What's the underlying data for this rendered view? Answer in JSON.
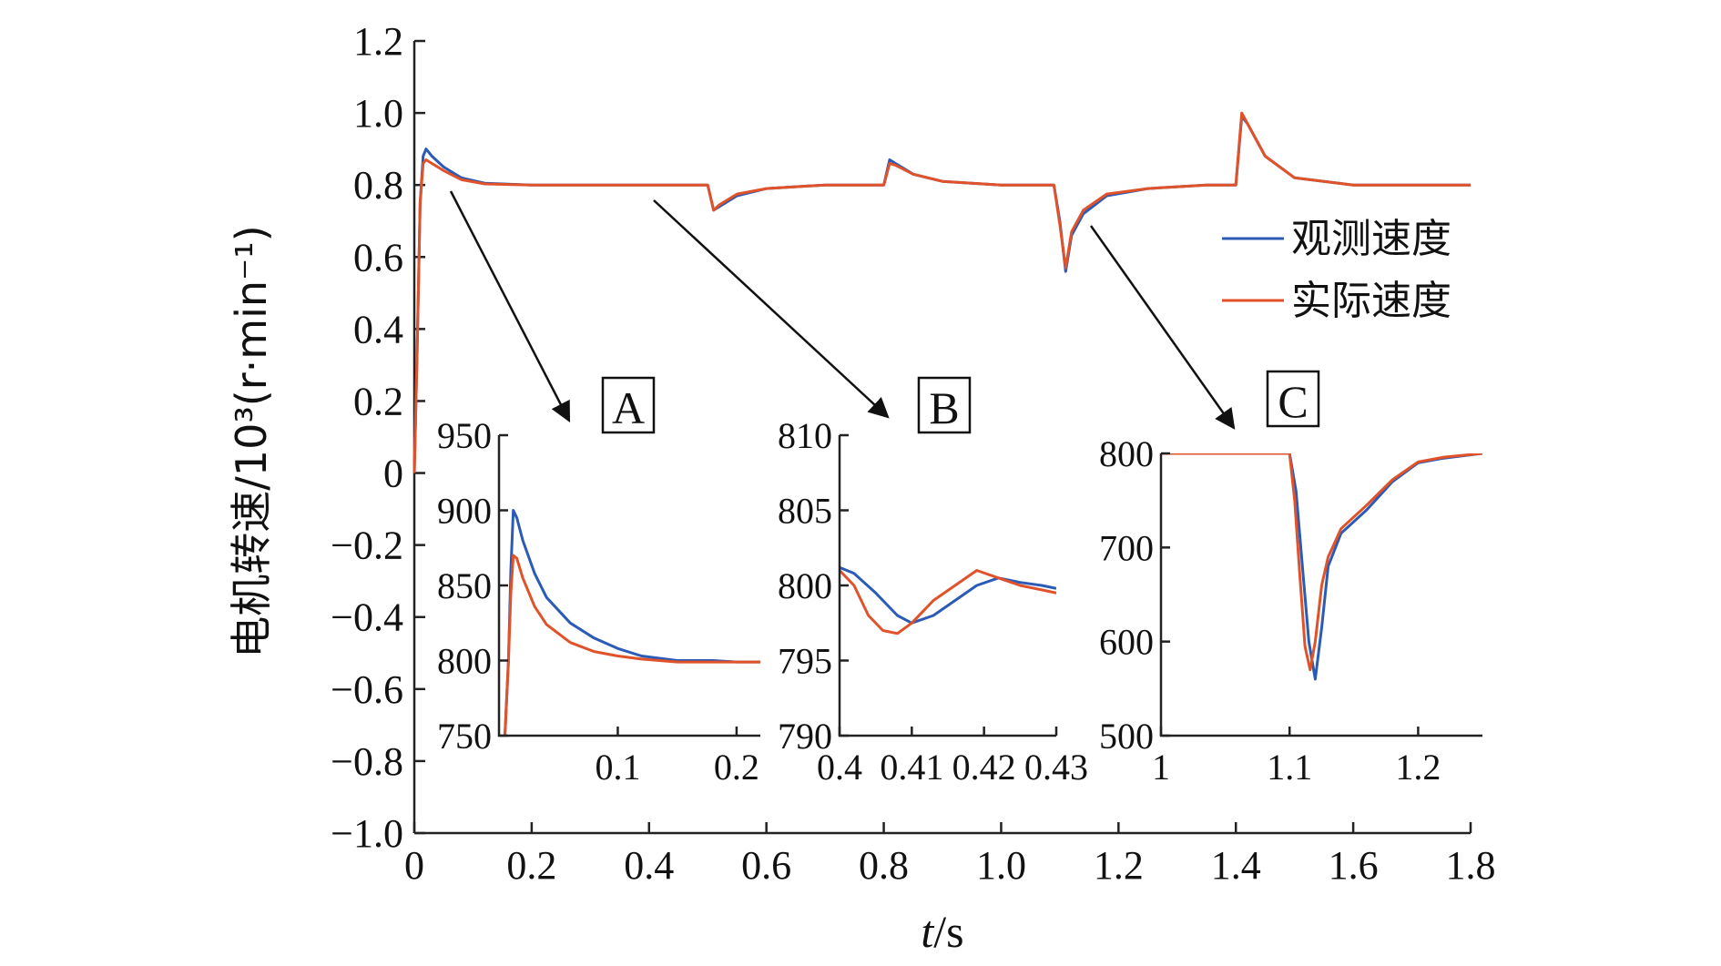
{
  "chart_data": [
    {
      "id": "main",
      "type": "line",
      "xlabel_italic": "t",
      "xlabel_rest": "/s",
      "ylabel": "电机转速/10³(r·min⁻¹)",
      "xlim": [
        0,
        1.8
      ],
      "ylim": [
        -1.0,
        1.2
      ],
      "xticks": [
        "0",
        "0.2",
        "0.4",
        "0.6",
        "0.8",
        "1.0",
        "1.2",
        "1.4",
        "1.6",
        "1.8"
      ],
      "xtick_values": [
        0,
        0.2,
        0.4,
        0.6,
        0.8,
        1.0,
        1.2,
        1.4,
        1.6,
        1.8
      ],
      "yticks": [
        "1.2",
        "1.0",
        "0.8",
        "0.6",
        "0.4",
        "0.2",
        "0",
        "−0.2",
        "−0.4",
        "−0.6",
        "−0.8",
        "−1.0"
      ],
      "ytick_values": [
        1.2,
        1.0,
        0.8,
        0.6,
        0.4,
        0.2,
        0,
        -0.2,
        -0.4,
        -0.6,
        -0.8,
        -1.0
      ],
      "legend_position": "right",
      "series": [
        {
          "name": "观测速度",
          "color": "#2b5bb5",
          "x": [
            0,
            0.005,
            0.01,
            0.015,
            0.02,
            0.03,
            0.05,
            0.08,
            0.12,
            0.2,
            0.5,
            0.51,
            0.52,
            0.55,
            0.6,
            0.7,
            0.8,
            0.81,
            0.82,
            0.85,
            0.9,
            1.0,
            1.09,
            1.1,
            1.11,
            1.12,
            1.14,
            1.18,
            1.25,
            1.35,
            1.4,
            1.41,
            1.42,
            1.45,
            1.5,
            1.6,
            1.8
          ],
          "y": [
            0,
            0.35,
            0.75,
            0.88,
            0.9,
            0.88,
            0.85,
            0.82,
            0.805,
            0.8,
            0.8,
            0.73,
            0.74,
            0.77,
            0.79,
            0.8,
            0.8,
            0.87,
            0.86,
            0.83,
            0.81,
            0.8,
            0.8,
            0.7,
            0.56,
            0.66,
            0.72,
            0.77,
            0.79,
            0.8,
            0.8,
            0.99,
            0.97,
            0.88,
            0.82,
            0.8,
            0.8
          ]
        },
        {
          "name": "实际速度",
          "color": "#e0522a",
          "x": [
            0,
            0.005,
            0.01,
            0.015,
            0.02,
            0.03,
            0.05,
            0.08,
            0.12,
            0.2,
            0.5,
            0.51,
            0.52,
            0.55,
            0.6,
            0.7,
            0.8,
            0.81,
            0.82,
            0.85,
            0.9,
            1.0,
            1.09,
            1.1,
            1.11,
            1.12,
            1.14,
            1.18,
            1.25,
            1.35,
            1.4,
            1.41,
            1.42,
            1.45,
            1.5,
            1.6,
            1.8
          ],
          "y": [
            0,
            0.35,
            0.75,
            0.86,
            0.87,
            0.86,
            0.84,
            0.815,
            0.803,
            0.8,
            0.8,
            0.73,
            0.745,
            0.775,
            0.79,
            0.8,
            0.8,
            0.86,
            0.855,
            0.83,
            0.81,
            0.8,
            0.8,
            0.69,
            0.57,
            0.67,
            0.73,
            0.775,
            0.79,
            0.8,
            0.8,
            1.0,
            0.97,
            0.88,
            0.82,
            0.8,
            0.8
          ]
        }
      ]
    },
    {
      "id": "inset-A",
      "type": "line",
      "tag": "A",
      "xlim": [
        0,
        0.22
      ],
      "ylim": [
        750,
        950
      ],
      "xticks": [
        "0.1",
        "0.2"
      ],
      "xtick_values": [
        0.1,
        0.2
      ],
      "yticks": [
        "950",
        "900",
        "850",
        "800",
        "750"
      ],
      "ytick_values": [
        950,
        900,
        850,
        800,
        750
      ],
      "series": [
        {
          "name": "观测速度",
          "x": [
            0.005,
            0.008,
            0.01,
            0.012,
            0.015,
            0.02,
            0.03,
            0.04,
            0.06,
            0.08,
            0.1,
            0.12,
            0.15,
            0.18,
            0.2,
            0.22
          ],
          "y": [
            750,
            800,
            860,
            900,
            895,
            880,
            858,
            842,
            825,
            815,
            808,
            803,
            800,
            800,
            799,
            799
          ]
        },
        {
          "name": "实际速度",
          "x": [
            0.005,
            0.008,
            0.01,
            0.012,
            0.015,
            0.02,
            0.03,
            0.04,
            0.06,
            0.08,
            0.1,
            0.12,
            0.15,
            0.18,
            0.2,
            0.22
          ],
          "y": [
            750,
            800,
            845,
            870,
            868,
            855,
            836,
            824,
            812,
            806,
            803,
            801,
            799,
            799,
            799,
            799
          ]
        }
      ]
    },
    {
      "id": "inset-B",
      "type": "line",
      "tag": "B",
      "xlim": [
        0.4,
        0.43
      ],
      "ylim": [
        790,
        810
      ],
      "xticks": [
        "0.4",
        "0.41",
        "0.42",
        "0.43"
      ],
      "xtick_values": [
        0.4,
        0.41,
        0.42,
        0.43
      ],
      "yticks": [
        "810",
        "805",
        "800",
        "795",
        "790"
      ],
      "ytick_values": [
        810,
        805,
        800,
        795,
        790
      ],
      "series": [
        {
          "name": "观测速度",
          "x": [
            0.4,
            0.402,
            0.405,
            0.408,
            0.41,
            0.413,
            0.416,
            0.419,
            0.422,
            0.425,
            0.428,
            0.43
          ],
          "y": [
            801.2,
            800.8,
            799.5,
            798.0,
            797.5,
            798.0,
            799.0,
            800.0,
            800.5,
            800.2,
            800.0,
            799.8
          ]
        },
        {
          "name": "实际速度",
          "x": [
            0.4,
            0.402,
            0.404,
            0.406,
            0.408,
            0.41,
            0.413,
            0.416,
            0.419,
            0.422,
            0.425,
            0.428,
            0.43
          ],
          "y": [
            801.0,
            800.0,
            798.0,
            797.0,
            796.8,
            797.5,
            799.0,
            800.0,
            801.0,
            800.5,
            800.0,
            799.7,
            799.5
          ]
        }
      ]
    },
    {
      "id": "inset-C",
      "type": "line",
      "tag": "C",
      "xlim": [
        1.0,
        1.25
      ],
      "ylim": [
        500,
        800
      ],
      "xticks": [
        "1",
        "1.1",
        "1.2"
      ],
      "xtick_values": [
        1.0,
        1.1,
        1.2
      ],
      "yticks": [
        "800",
        "700",
        "600",
        "500"
      ],
      "ytick_values": [
        800,
        700,
        600,
        500
      ],
      "series": [
        {
          "name": "观测速度",
          "x": [
            1.0,
            1.05,
            1.1,
            1.105,
            1.11,
            1.115,
            1.12,
            1.125,
            1.13,
            1.14,
            1.16,
            1.18,
            1.2,
            1.22,
            1.25
          ],
          "y": [
            800,
            800,
            800,
            760,
            680,
            600,
            560,
            615,
            680,
            715,
            740,
            770,
            790,
            795,
            800
          ]
        },
        {
          "name": "实际速度",
          "x": [
            1.0,
            1.05,
            1.1,
            1.104,
            1.108,
            1.112,
            1.116,
            1.12,
            1.125,
            1.13,
            1.14,
            1.16,
            1.18,
            1.2,
            1.22,
            1.25
          ],
          "y": [
            800,
            800,
            800,
            750,
            670,
            595,
            570,
            600,
            660,
            690,
            720,
            745,
            772,
            791,
            796,
            800
          ]
        }
      ]
    }
  ]
}
